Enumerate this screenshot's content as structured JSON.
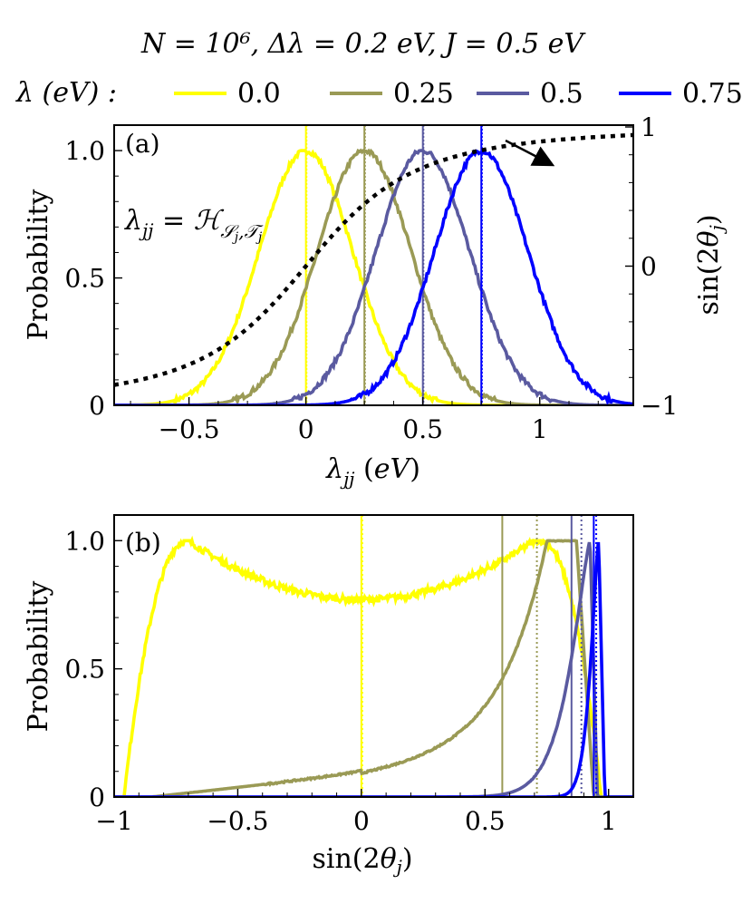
{
  "figure": {
    "title": "N = 10⁶,  Δλ = 0.2 eV,  J = 0.5 eV",
    "legend_label": "λ (eV) :"
  },
  "colors": {
    "yellow": "#ffff00",
    "olive": "#9a9a55",
    "slate": "#5a5aa0",
    "blue": "#0000ff",
    "black": "#000000"
  },
  "chart_data": [
    {
      "type": "line",
      "panel_label": "(a)",
      "xlabel": "λjj (eV)",
      "ylabel": "Probability",
      "ylabel_right": "sin(2θj)",
      "annotation": "λjj = H_Sj,Tj",
      "xlim": [
        -0.82,
        1.4
      ],
      "ylim": [
        0,
        1.1
      ],
      "ylim_right": [
        -1,
        1
      ],
      "x_ticks": [
        -0.5,
        0,
        0.5,
        1
      ],
      "x_tick_labels": [
        "−0.5",
        "0",
        "0.5",
        "1"
      ],
      "y_ticks": [
        0,
        0.5,
        1.0
      ],
      "y_tick_labels": [
        "0",
        "0.5",
        "1.0"
      ],
      "y_right_ticks": [
        -1,
        0,
        1
      ],
      "y_right_tick_labels": [
        "−1",
        "0",
        "1"
      ],
      "series": [
        {
          "name": "0.0",
          "lambda": 0.0,
          "color": "#ffff00",
          "mean": 0.0,
          "sigma": 0.2
        },
        {
          "name": "0.25",
          "lambda": 0.25,
          "color": "#9a9a55",
          "mean": 0.25,
          "sigma": 0.2
        },
        {
          "name": "0.5",
          "lambda": 0.5,
          "color": "#5a5aa0",
          "mean": 0.5,
          "sigma": 0.2
        },
        {
          "name": "0.75",
          "lambda": 0.75,
          "color": "#0000ff",
          "mean": 0.75,
          "sigma": 0.2
        }
      ],
      "sin_curve": {
        "description": "sin(2θj) = λjj / sqrt(λjj² + J²)",
        "J": 0.5
      },
      "vlines": [
        0.0,
        0.25,
        0.5,
        0.75
      ]
    },
    {
      "type": "line",
      "panel_label": "(b)",
      "xlabel": "sin(2θj)",
      "ylabel": "Probability",
      "xlim": [
        -1.0,
        1.1
      ],
      "ylim": [
        0,
        1.1
      ],
      "x_ticks": [
        -1,
        -0.5,
        0,
        0.5,
        1
      ],
      "x_tick_labels": [
        "−1",
        "−0.5",
        "0",
        "0.5",
        "1"
      ],
      "y_ticks": [
        0,
        0.5,
        1.0
      ],
      "y_tick_labels": [
        "0",
        "0.5",
        "1.0"
      ],
      "series": [
        {
          "name": "0.0",
          "color": "#ffff00",
          "solid_line": 0.0,
          "dotted_line": 0.0
        },
        {
          "name": "0.25",
          "color": "#9a9a55",
          "solid_line": 0.57,
          "dotted_line": 0.71
        },
        {
          "name": "0.5",
          "color": "#5a5aa0",
          "solid_line": 0.85,
          "dotted_line": 0.89
        },
        {
          "name": "0.75",
          "color": "#0000ff",
          "solid_line": 0.94,
          "dotted_line": 0.95
        }
      ]
    }
  ]
}
